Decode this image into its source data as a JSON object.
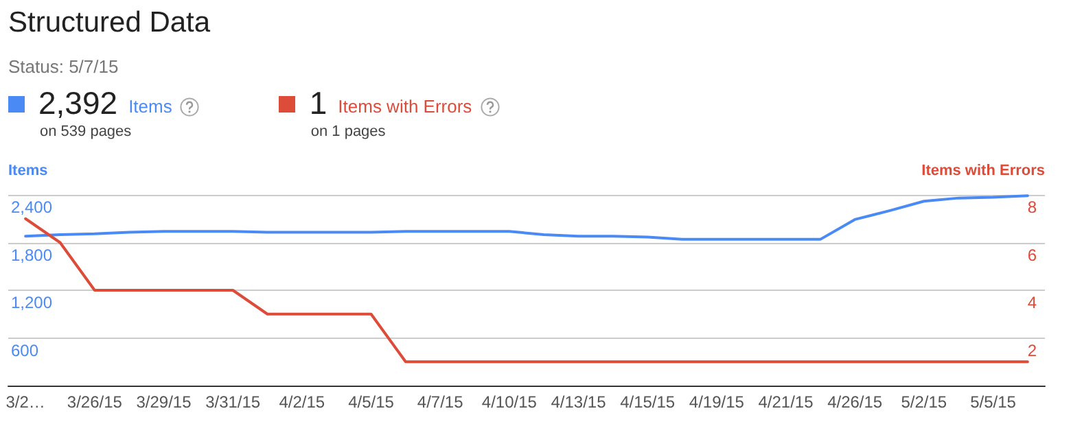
{
  "chart_data": {
    "type": "line",
    "title": "Structured Data",
    "subtitle": "Status: 5/7/15",
    "ylabel": "Items",
    "y2label": "Items with Errors",
    "annotations": [
      "2,392",
      "on 539 pages",
      "1",
      "on 1 pages"
    ],
    "categories": [
      "3/2…",
      null,
      "3/26/15",
      null,
      "3/29/15",
      null,
      "3/31/15",
      null,
      "4/2/15",
      null,
      "4/5/15",
      null,
      "4/7/15",
      null,
      "4/10/15",
      null,
      "4/13/15",
      null,
      "4/15/15",
      null,
      "4/19/15",
      null,
      "4/21/15",
      null,
      "4/26/15",
      null,
      "5/2/15",
      null,
      "5/5/15",
      null
    ],
    "series": [
      {
        "name": "Items",
        "color": "#4a8af4",
        "values": [
          1880,
          1900,
          1910,
          1930,
          1940,
          1940,
          1940,
          1930,
          1930,
          1930,
          1930,
          1940,
          1940,
          1940,
          1940,
          1900,
          1880,
          1880,
          1870,
          1840,
          1840,
          1840,
          1840,
          1840,
          2090,
          2200,
          2320,
          2360,
          2370,
          2390
        ]
      },
      {
        "name": "Items with Errors",
        "color": "#dd4b39",
        "axis": "y2",
        "values": [
          7,
          6,
          4,
          4,
          4,
          4,
          4,
          3,
          3,
          3,
          3,
          1,
          1,
          1,
          1,
          1,
          1,
          1,
          1,
          1,
          1,
          1,
          1,
          1,
          1,
          1,
          1,
          1,
          1,
          1
        ]
      }
    ],
    "ylim": [
      0,
      2400
    ],
    "yticks": [
      600,
      {
        "value": 1200,
        "label": "1,200"
      },
      {
        "value": 1800,
        "label": "1,800"
      },
      {
        "value": 2400,
        "label": "2,400"
      }
    ],
    "y2lim": [
      0,
      8
    ],
    "y2ticks": [
      2,
      4,
      6,
      8
    ],
    "grid": "y",
    "legend": "top left",
    "marker": "none",
    "line_style": "solid"
  }
}
